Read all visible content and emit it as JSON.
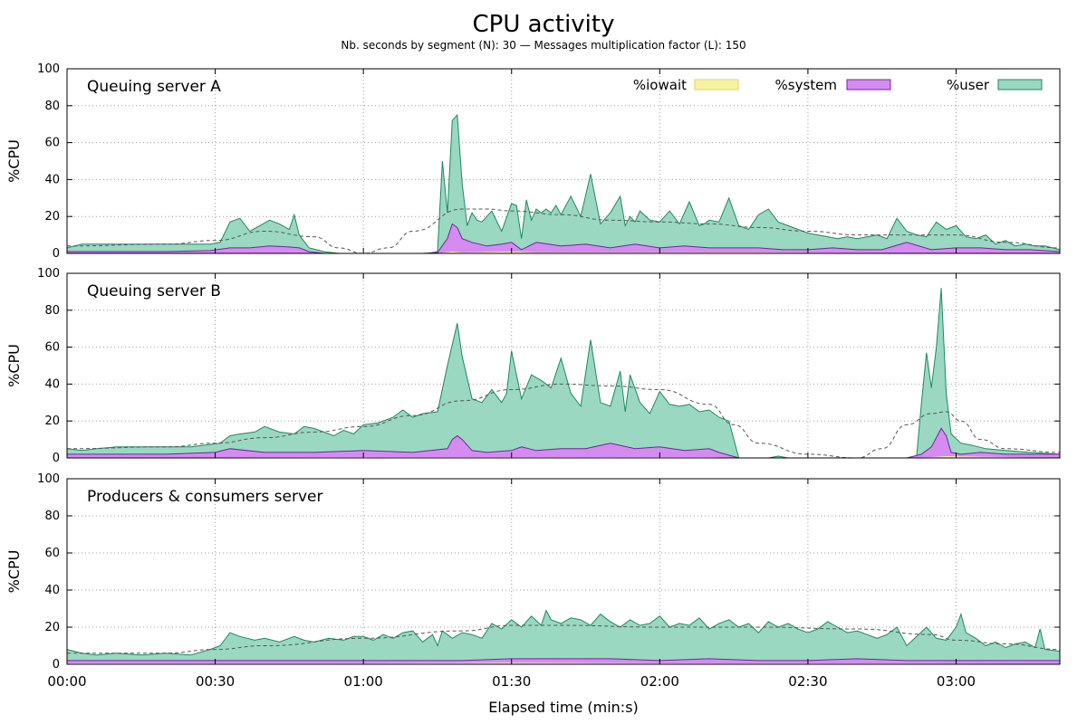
{
  "chart_data": {
    "type": "area",
    "title": "CPU activity",
    "subtitle": "Nb. seconds by segment (N): 30  —  Messages multiplication factor (L): 150",
    "xlabel": "Elapsed time (min:s)",
    "ylabel": "%CPU",
    "x_unit": "seconds",
    "xlim": [
      0,
      201
    ],
    "x_ticks": [
      {
        "value": 0,
        "label": "00:00"
      },
      {
        "value": 30,
        "label": "00:30"
      },
      {
        "value": 60,
        "label": "01:00"
      },
      {
        "value": 90,
        "label": "01:30"
      },
      {
        "value": 120,
        "label": "02:00"
      },
      {
        "value": 150,
        "label": "02:30"
      },
      {
        "value": 180,
        "label": "03:00"
      }
    ],
    "ylim": [
      0,
      100
    ],
    "y_ticks": [
      0,
      20,
      40,
      60,
      80,
      100
    ],
    "grid": true,
    "legend": {
      "placement": "top-right of first panel",
      "entries": [
        {
          "name": "%iowait",
          "color": "#f7f3a5",
          "stroke": "#e0d35a"
        },
        {
          "name": "%system",
          "color": "#d48cf0",
          "stroke": "#7a1fa0"
        },
        {
          "name": "%user",
          "color": "#9ad8c2",
          "stroke": "#1a8a5e"
        }
      ]
    },
    "colors": {
      "user_fill": "#9ad8c2",
      "user_line": "#1a8a5e",
      "system_fill": "#d48cf0",
      "system_line": "#7a1fa0",
      "iowait_fill": "#f7f3a5",
      "trend_line": "#555555",
      "grid": "#9a9a9a"
    },
    "panels": [
      {
        "title": "Queuing server A",
        "series_total": {
          "name": "%user + %system + %iowait",
          "x": [
            0,
            3,
            6,
            10,
            15,
            20,
            25,
            29,
            31,
            33,
            35,
            37,
            39,
            41,
            43,
            45,
            46,
            47,
            49,
            52,
            55,
            58,
            61,
            64,
            67,
            70,
            73,
            75,
            76,
            77,
            78,
            79,
            80,
            81,
            82,
            83,
            84,
            86,
            88,
            90,
            91,
            92,
            93,
            94,
            95,
            96,
            97,
            98,
            99,
            100,
            102,
            104,
            106,
            108,
            110,
            112,
            113,
            114,
            115,
            116,
            118,
            120,
            122,
            124,
            126,
            128,
            129,
            130,
            132,
            134,
            136,
            138,
            140,
            142,
            144,
            146,
            148,
            150,
            152,
            154,
            156,
            158,
            160,
            162,
            164,
            166,
            168,
            170,
            172,
            174,
            176,
            178,
            180,
            182,
            184,
            186,
            188,
            190,
            192,
            194,
            196,
            198,
            201
          ],
          "y": [
            3,
            5,
            5,
            5,
            5,
            5,
            5,
            5,
            6,
            17,
            19,
            12,
            15,
            18,
            16,
            13,
            21,
            10,
            3,
            1,
            0,
            0,
            0,
            0,
            0,
            0,
            0,
            1,
            50,
            22,
            72,
            75,
            38,
            15,
            22,
            18,
            17,
            23,
            12,
            27,
            26,
            8,
            29,
            18,
            24,
            22,
            24,
            22,
            26,
            21,
            31,
            20,
            43,
            16,
            22,
            31,
            15,
            20,
            17,
            23,
            18,
            17,
            23,
            16,
            28,
            15,
            16,
            18,
            17,
            30,
            15,
            13,
            21,
            24,
            17,
            15,
            13,
            11,
            10,
            9,
            8,
            9,
            8,
            9,
            10,
            8,
            19,
            12,
            10,
            9,
            17,
            13,
            15,
            9,
            8,
            10,
            5,
            7,
            4,
            5,
            4,
            4,
            2
          ]
        },
        "series_system": {
          "name": "%system",
          "x": [
            0,
            10,
            20,
            29,
            33,
            37,
            41,
            45,
            47,
            49,
            52,
            60,
            72,
            75,
            77,
            78,
            79,
            80,
            82,
            85,
            88,
            90,
            92,
            95,
            100,
            105,
            110,
            115,
            120,
            125,
            130,
            135,
            140,
            145,
            150,
            155,
            160,
            165,
            170,
            175,
            180,
            185,
            190,
            195,
            201
          ],
          "y": [
            1,
            1,
            1,
            1.5,
            3,
            3,
            4,
            3.5,
            3,
            1,
            0,
            0,
            0,
            0.5,
            8,
            16,
            14,
            8,
            6,
            4,
            5,
            6,
            2,
            6,
            4,
            5,
            3,
            5,
            3,
            4,
            3,
            3,
            3,
            2,
            2,
            3,
            2,
            2,
            6,
            2,
            3,
            3,
            2,
            2,
            1
          ]
        },
        "series_iowait": {
          "name": "%iowait",
          "x": [
            0,
            75,
            78,
            80,
            90,
            95,
            100,
            140,
            160,
            201
          ],
          "y": [
            0,
            0,
            1,
            0.5,
            1,
            0.5,
            0.5,
            0.5,
            0.3,
            0
          ]
        },
        "trend": {
          "name": "trend",
          "x": [
            0,
            20,
            30,
            40,
            50,
            55,
            60,
            65,
            70,
            80,
            85,
            90,
            100,
            110,
            120,
            130,
            140,
            150,
            160,
            170,
            180,
            190,
            201
          ],
          "y": [
            4,
            5,
            7,
            12,
            9,
            3,
            0,
            3,
            12,
            24,
            24,
            23,
            21,
            18,
            17,
            16,
            14,
            12,
            10,
            10,
            10,
            6,
            3
          ]
        }
      },
      {
        "title": "Queuing server B",
        "series_total": {
          "name": "%user + %system + %iowait",
          "x": [
            0,
            3,
            6,
            10,
            15,
            20,
            25,
            28,
            31,
            33,
            35,
            38,
            40,
            43,
            46,
            48,
            50,
            52,
            54,
            56,
            58,
            60,
            63,
            66,
            68,
            70,
            72,
            75,
            77,
            79,
            80,
            82,
            84,
            86,
            88,
            89,
            90,
            92,
            94,
            96,
            98,
            100,
            102,
            104,
            106,
            108,
            110,
            112,
            113,
            114,
            116,
            118,
            120,
            122,
            124,
            126,
            128,
            130,
            132,
            134,
            136,
            138,
            139,
            140,
            142,
            144,
            146,
            148,
            150,
            155,
            160,
            165,
            170,
            172,
            173,
            174,
            175,
            176,
            177,
            178,
            179,
            181,
            183,
            186,
            190,
            195,
            201
          ],
          "y": [
            5,
            4,
            5,
            6,
            6,
            6,
            6,
            7,
            8,
            12,
            13,
            14,
            17,
            14,
            13,
            17,
            16,
            14,
            12,
            15,
            13,
            18,
            19,
            22,
            26,
            22,
            24,
            25,
            50,
            73,
            55,
            32,
            30,
            37,
            30,
            35,
            58,
            32,
            45,
            42,
            38,
            54,
            35,
            28,
            64,
            30,
            28,
            47,
            25,
            45,
            30,
            24,
            36,
            29,
            28,
            29,
            25,
            26,
            22,
            20,
            0,
            0,
            0,
            0,
            0,
            1,
            0,
            0,
            0,
            0,
            0,
            0,
            0,
            1,
            30,
            57,
            38,
            60,
            92,
            35,
            13,
            8,
            7,
            5,
            4,
            3,
            2
          ]
        },
        "series_system": {
          "name": "%system",
          "x": [
            0,
            10,
            20,
            30,
            33,
            40,
            50,
            60,
            70,
            77,
            78,
            79,
            80,
            82,
            85,
            90,
            92,
            95,
            100,
            105,
            110,
            115,
            120,
            125,
            130,
            132,
            136,
            140,
            160,
            170,
            173,
            175,
            177,
            178,
            179,
            181,
            185,
            190,
            201
          ],
          "y": [
            2,
            2,
            2,
            3,
            5,
            3,
            3,
            4,
            3,
            5,
            10,
            12,
            10,
            4,
            3,
            4,
            6,
            4,
            5,
            5,
            8,
            5,
            6,
            4,
            5,
            3,
            0,
            0,
            0,
            0,
            2,
            6,
            16,
            12,
            3,
            2,
            3,
            2,
            2
          ]
        },
        "series_iowait": {
          "name": "%iowait",
          "x": [
            0,
            50,
            80,
            100,
            130,
            136,
            170,
            175,
            178,
            201
          ],
          "y": [
            0,
            0.5,
            0.5,
            0.5,
            0.5,
            0,
            0,
            0.5,
            1,
            0
          ]
        },
        "trend": {
          "name": "trend",
          "x": [
            0,
            20,
            30,
            40,
            50,
            60,
            70,
            80,
            90,
            100,
            110,
            120,
            130,
            135,
            140,
            150,
            160,
            165,
            170,
            175,
            178,
            181,
            185,
            190,
            201
          ],
          "y": [
            5,
            6,
            8,
            11,
            14,
            17,
            23,
            31,
            37,
            40,
            39,
            37,
            29,
            18,
            8,
            2,
            0,
            5,
            18,
            24,
            25,
            20,
            10,
            5,
            3
          ]
        }
      },
      {
        "title": "Producers & consumers server",
        "series_total": {
          "name": "%user + %system + %iowait",
          "x": [
            0,
            3,
            6,
            10,
            15,
            20,
            25,
            29,
            31,
            33,
            35,
            38,
            40,
            43,
            46,
            48,
            50,
            53,
            56,
            58,
            60,
            62,
            64,
            66,
            68,
            70,
            72,
            74,
            75,
            76,
            78,
            80,
            82,
            84,
            86,
            88,
            90,
            92,
            94,
            96,
            97,
            98,
            100,
            102,
            104,
            106,
            108,
            110,
            112,
            114,
            116,
            118,
            120,
            122,
            124,
            126,
            128,
            130,
            132,
            134,
            136,
            138,
            140,
            142,
            144,
            146,
            148,
            150,
            152,
            154,
            156,
            158,
            160,
            162,
            164,
            166,
            168,
            170,
            172,
            174,
            176,
            178,
            180,
            181,
            182,
            184,
            186,
            188,
            190,
            192,
            194,
            196,
            197,
            198,
            201
          ],
          "y": [
            8,
            6,
            5,
            6,
            5,
            6,
            5,
            8,
            10,
            17,
            15,
            13,
            14,
            12,
            15,
            13,
            12,
            14,
            13,
            15,
            15,
            13,
            16,
            14,
            17,
            18,
            12,
            16,
            10,
            18,
            14,
            17,
            16,
            14,
            22,
            19,
            24,
            20,
            26,
            21,
            29,
            24,
            22,
            25,
            24,
            21,
            27,
            23,
            20,
            24,
            21,
            22,
            26,
            20,
            22,
            21,
            25,
            19,
            22,
            24,
            20,
            22,
            17,
            23,
            20,
            22,
            19,
            17,
            19,
            23,
            20,
            17,
            18,
            16,
            14,
            16,
            20,
            10,
            15,
            20,
            14,
            13,
            20,
            27,
            17,
            14,
            10,
            12,
            9,
            11,
            12,
            9,
            19,
            8,
            7
          ]
        },
        "series_system": {
          "name": "%system",
          "x": [
            0,
            20,
            40,
            60,
            80,
            90,
            100,
            110,
            120,
            130,
            140,
            150,
            160,
            170,
            180,
            190,
            201
          ],
          "y": [
            2,
            2,
            2,
            2,
            2,
            3,
            3,
            3,
            2,
            3,
            2,
            2,
            3,
            2,
            2,
            2,
            2
          ]
        },
        "series_iowait": {
          "name": "%iowait",
          "x": [
            0,
            60,
            90,
            120,
            150,
            201
          ],
          "y": [
            0.5,
            0.5,
            0.8,
            0.5,
            0.5,
            0.3
          ]
        },
        "trend": {
          "name": "trend",
          "x": [
            0,
            20,
            30,
            40,
            60,
            80,
            90,
            100,
            120,
            140,
            160,
            175,
            180,
            190,
            201
          ],
          "y": [
            6,
            6,
            8,
            10,
            14,
            18,
            21,
            21,
            20,
            20,
            19,
            16,
            13,
            11,
            8
          ]
        }
      }
    ]
  }
}
